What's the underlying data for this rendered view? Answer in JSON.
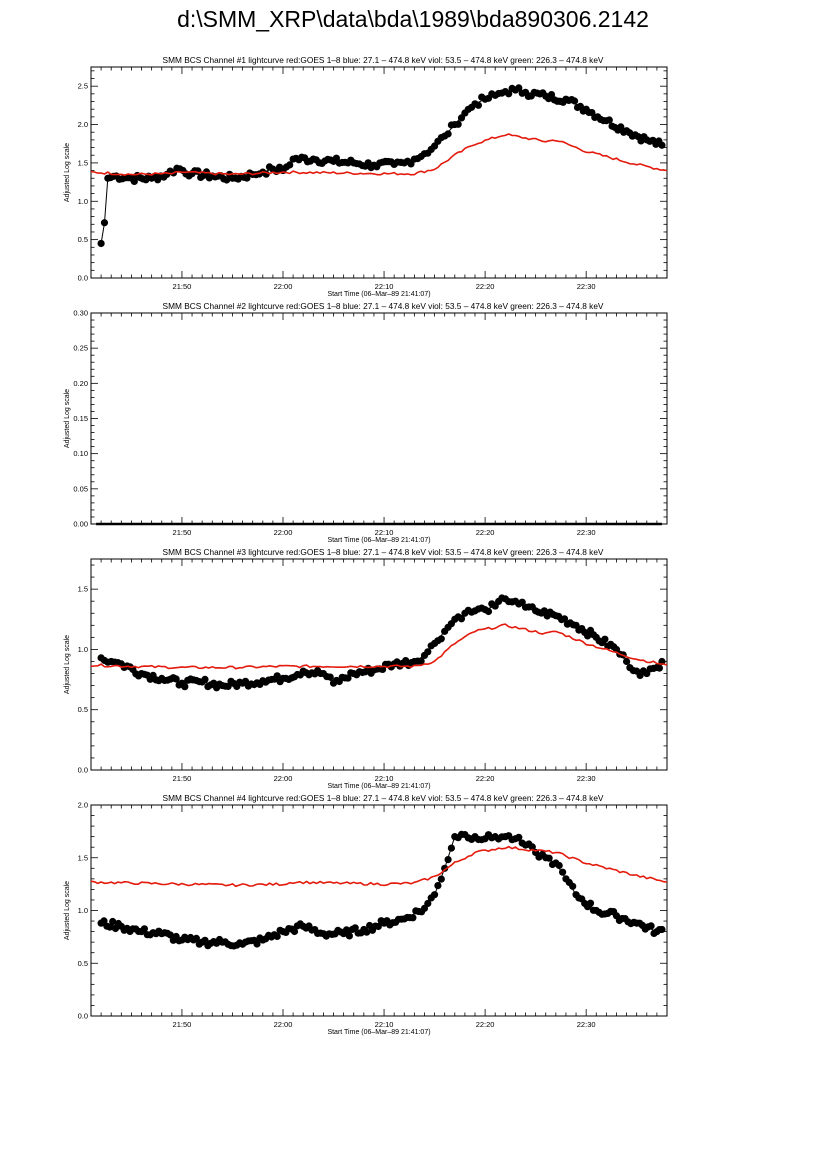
{
  "page": {
    "title": "d:\\SMM_XRP\\data\\bda\\1989\\bda890306.2142"
  },
  "colors": {
    "goes_line": "#e31a0c",
    "bcs_points": "#000000",
    "axes": "#000000"
  },
  "chart_data": [
    {
      "type": "scatter",
      "title": "SMM BCS Channel #1 lightcurve  red:GOES 1–8  blue: 27.1 – 474.8 keV  viol: 53.5 – 474.8 keV  green: 226.3 – 474.8 keV",
      "xlabel": "Start Time (06–Mar–89 21:41:07)",
      "ylabel": "Adjusted Log scale",
      "xlim": [
        "21:41:00",
        "22:38:00"
      ],
      "ylim": [
        0,
        2.75
      ],
      "xticks": [
        "21:50",
        "22:00",
        "22:10",
        "22:20",
        "22:30"
      ],
      "yticks": [
        0.0,
        0.5,
        1.0,
        1.5,
        2.0,
        2.5
      ],
      "ytick_labels": [
        "0.0",
        "0.5",
        "1.0",
        "1.5",
        "2.0",
        "2.5"
      ],
      "series": [
        {
          "color": "#000000",
          "style": "points",
          "x": [
            "21:42",
            "21:42:20",
            "21:42:40",
            "21:43:30",
            "21:45",
            "21:47",
            "21:48:30",
            "21:49:30",
            "21:51",
            "21:53",
            "21:55",
            "21:57",
            "21:58",
            "21:59",
            "22:00",
            "22:01",
            "22:03",
            "22:05",
            "22:07",
            "22:09",
            "22:11",
            "22:12",
            "22:13",
            "22:14",
            "22:15",
            "22:16",
            "22:17",
            "22:18",
            "22:19",
            "22:20",
            "22:21",
            "22:22",
            "22:23",
            "22:24",
            "22:26",
            "22:28",
            "22:30",
            "22:32",
            "22:34",
            "22:36",
            "22:37:30"
          ],
          "y": [
            0.45,
            0.72,
            1.3,
            1.33,
            1.3,
            1.3,
            1.35,
            1.43,
            1.36,
            1.33,
            1.3,
            1.35,
            1.38,
            1.42,
            1.4,
            1.55,
            1.55,
            1.52,
            1.5,
            1.47,
            1.48,
            1.5,
            1.55,
            1.62,
            1.72,
            1.85,
            2.0,
            2.15,
            2.27,
            2.33,
            2.38,
            2.43,
            2.45,
            2.42,
            2.37,
            2.33,
            2.2,
            2.05,
            1.92,
            1.8,
            1.73
          ]
        },
        {
          "color": "#e31a0c",
          "style": "line",
          "x": [
            "21:41",
            "21:45",
            "21:49",
            "21:50",
            "21:55",
            "22:00",
            "22:05",
            "22:10",
            "22:13",
            "22:15",
            "22:17",
            "22:19",
            "22:22",
            "22:26",
            "22:27",
            "22:30",
            "22:35",
            "22:38"
          ],
          "y": [
            1.38,
            1.35,
            1.36,
            1.38,
            1.35,
            1.38,
            1.37,
            1.36,
            1.36,
            1.42,
            1.6,
            1.75,
            1.87,
            1.78,
            1.8,
            1.65,
            1.48,
            1.4
          ]
        }
      ]
    },
    {
      "type": "scatter",
      "title": "SMM BCS Channel #2 lightcurve  red:GOES 1–8  blue: 27.1 – 474.8 keV  viol: 53.5 – 474.8 keV  green: 226.3 – 474.8 keV",
      "xlabel": "Start Time (06–Mar–89 21:41:07)",
      "ylabel": "Adjusted Log scale",
      "xlim": [
        "21:41:00",
        "22:38:00"
      ],
      "ylim": [
        0,
        0.3
      ],
      "xticks": [
        "21:50",
        "22:00",
        "22:10",
        "22:20",
        "22:30"
      ],
      "yticks": [
        0.0,
        0.05,
        0.1,
        0.15,
        0.2,
        0.25,
        0.3
      ],
      "ytick_labels": [
        "0.00",
        "0.05",
        "0.10",
        "0.15",
        "0.20",
        "0.25",
        "0.30"
      ],
      "series": [
        {
          "color": "#000000",
          "style": "line",
          "x": [
            "21:41:30",
            "22:37:30"
          ],
          "y": [
            0.0,
            0.0
          ]
        }
      ]
    },
    {
      "type": "scatter",
      "title": "SMM BCS Channel #3 lightcurve  red:GOES 1–8  blue: 27.1 – 474.8 keV  viol: 53.5 – 474.8 keV  green: 226.3 – 474.8 keV",
      "xlabel": "Start Time (06–Mar–89 21:41:07)",
      "ylabel": "Adjusted Log scale",
      "xlim": [
        "21:41:00",
        "22:38:00"
      ],
      "ylim": [
        0,
        1.75
      ],
      "xticks": [
        "21:50",
        "22:00",
        "22:10",
        "22:20",
        "22:30"
      ],
      "yticks": [
        0.0,
        0.5,
        1.0,
        1.5
      ],
      "ytick_labels": [
        "0.0",
        "0.5",
        "1.0",
        "1.5"
      ],
      "series": [
        {
          "color": "#000000",
          "style": "points",
          "x": [
            "21:42",
            "21:43",
            "21:44",
            "21:46",
            "21:48",
            "21:50",
            "21:52",
            "21:54",
            "21:56",
            "21:58",
            "22:00",
            "22:02",
            "22:04",
            "22:05",
            "22:07",
            "22:09",
            "22:11",
            "22:13",
            "22:14",
            "22:15",
            "22:16",
            "22:17",
            "22:18",
            "22:19",
            "22:20",
            "22:21",
            "22:22",
            "22:23",
            "22:24",
            "22:25",
            "22:27",
            "22:29",
            "22:31",
            "22:33",
            "22:34",
            "22:35",
            "22:36",
            "22:37",
            "22:37:30"
          ],
          "y": [
            0.93,
            0.9,
            0.88,
            0.8,
            0.76,
            0.72,
            0.73,
            0.7,
            0.72,
            0.74,
            0.76,
            0.82,
            0.8,
            0.72,
            0.8,
            0.83,
            0.88,
            0.9,
            0.95,
            1.05,
            1.15,
            1.25,
            1.3,
            1.32,
            1.33,
            1.36,
            1.42,
            1.4,
            1.35,
            1.32,
            1.28,
            1.2,
            1.1,
            1.0,
            0.9,
            0.82,
            0.8,
            0.85,
            0.9
          ]
        },
        {
          "color": "#e31a0c",
          "style": "line",
          "x": [
            "21:41",
            "21:45",
            "21:50",
            "21:55",
            "22:00",
            "22:05",
            "22:10",
            "22:13",
            "22:15",
            "22:17",
            "22:19",
            "22:22",
            "22:26",
            "22:27",
            "22:30",
            "22:35",
            "22:38"
          ],
          "y": [
            0.87,
            0.86,
            0.85,
            0.85,
            0.86,
            0.86,
            0.86,
            0.86,
            0.9,
            1.05,
            1.15,
            1.2,
            1.13,
            1.15,
            1.05,
            0.92,
            0.87
          ]
        }
      ]
    },
    {
      "type": "scatter",
      "title": "SMM BCS Channel #4 lightcurve  red:GOES 1–8  blue: 27.1 – 474.8 keV  viol: 53.5 – 474.8 keV  green: 226.3 – 474.8 keV",
      "xlabel": "Start Time (06–Mar–89 21:41:07)",
      "ylabel": "Adjusted Log scale",
      "xlim": [
        "21:41:00",
        "22:38:00"
      ],
      "ylim": [
        0,
        2.0
      ],
      "xticks": [
        "21:50",
        "22:00",
        "22:10",
        "22:20",
        "22:30"
      ],
      "yticks": [
        0.0,
        0.5,
        1.0,
        1.5,
        2.0
      ],
      "ytick_labels": [
        "0.0",
        "0.5",
        "1.0",
        "1.5",
        "2.0"
      ],
      "series": [
        {
          "color": "#000000",
          "style": "points",
          "x": [
            "21:42",
            "21:44",
            "21:46",
            "21:48",
            "21:50",
            "21:52",
            "21:54",
            "21:56",
            "21:58",
            "22:00",
            "22:02",
            "22:04",
            "22:06",
            "22:08",
            "22:10",
            "22:12",
            "22:14",
            "22:15",
            "22:16",
            "22:17",
            "22:18",
            "22:19",
            "22:20",
            "22:21",
            "22:22",
            "22:23",
            "22:24",
            "22:25",
            "22:26",
            "22:27",
            "22:28",
            "22:29",
            "22:31",
            "22:33",
            "22:35",
            "22:37",
            "22:37:30"
          ],
          "y": [
            0.88,
            0.85,
            0.8,
            0.78,
            0.72,
            0.7,
            0.7,
            0.68,
            0.72,
            0.8,
            0.85,
            0.78,
            0.78,
            0.82,
            0.88,
            0.92,
            1.02,
            1.15,
            1.4,
            1.7,
            1.72,
            1.7,
            1.68,
            1.7,
            1.7,
            1.68,
            1.62,
            1.55,
            1.5,
            1.45,
            1.3,
            1.15,
            1.0,
            0.95,
            0.88,
            0.8,
            0.82
          ]
        },
        {
          "color": "#e31a0c",
          "style": "line",
          "x": [
            "21:41",
            "21:45",
            "21:50",
            "21:55",
            "22:00",
            "22:01",
            "22:05",
            "22:10",
            "22:13",
            "22:15",
            "22:17",
            "22:19",
            "22:22",
            "22:27",
            "22:30",
            "22:35",
            "22:38"
          ],
          "y": [
            1.27,
            1.26,
            1.25,
            1.24,
            1.25,
            1.27,
            1.26,
            1.25,
            1.26,
            1.32,
            1.45,
            1.55,
            1.6,
            1.55,
            1.45,
            1.33,
            1.27
          ]
        }
      ]
    }
  ]
}
